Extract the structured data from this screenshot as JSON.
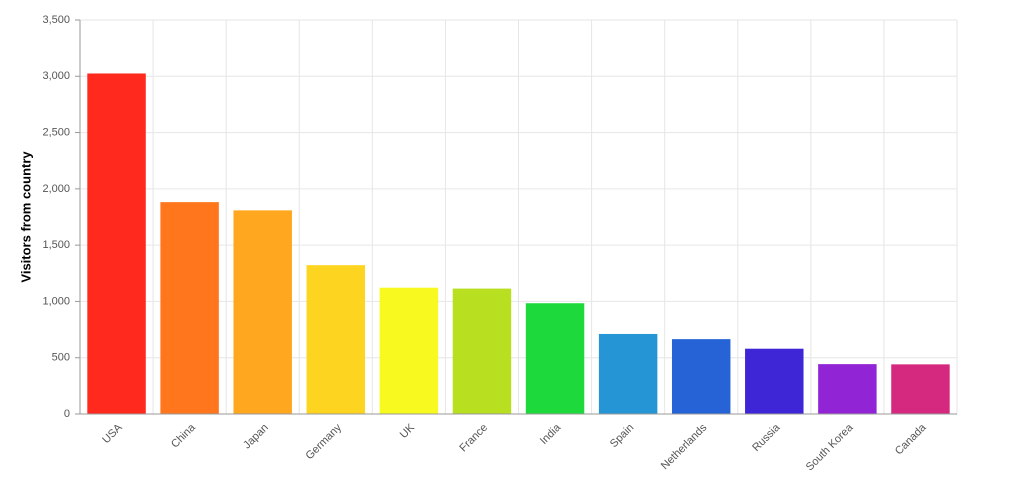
{
  "chart_data": {
    "type": "bar",
    "y_label": "Visitors from country",
    "categories": [
      "USA",
      "China",
      "Japan",
      "Germany",
      "UK",
      "France",
      "India",
      "Spain",
      "Netherlands",
      "Russia",
      "South Korea",
      "Canada"
    ],
    "values": [
      3025,
      1882,
      1809,
      1322,
      1122,
      1114,
      984,
      711,
      665,
      580,
      443,
      441
    ],
    "colors": [
      "#ff291d",
      "#ff761c",
      "#ffa81f",
      "#fdd41f",
      "#f8fa1f",
      "#b8e021",
      "#1ed93c",
      "#2595d6",
      "#2563d6",
      "#3e25d6",
      "#9125d6",
      "#d52980"
    ],
    "ylim": [
      0,
      3500
    ],
    "yticks": [
      0,
      500,
      {
        "value": 1000,
        "label": "1,000"
      },
      {
        "value": 1500,
        "label": "1,500"
      },
      {
        "value": 2000,
        "label": "2,000"
      },
      {
        "value": 2500,
        "label": "2,500"
      },
      {
        "value": 3000,
        "label": "3,000"
      },
      {
        "value": 3500,
        "label": "3,500"
      }
    ],
    "grid": true
  }
}
